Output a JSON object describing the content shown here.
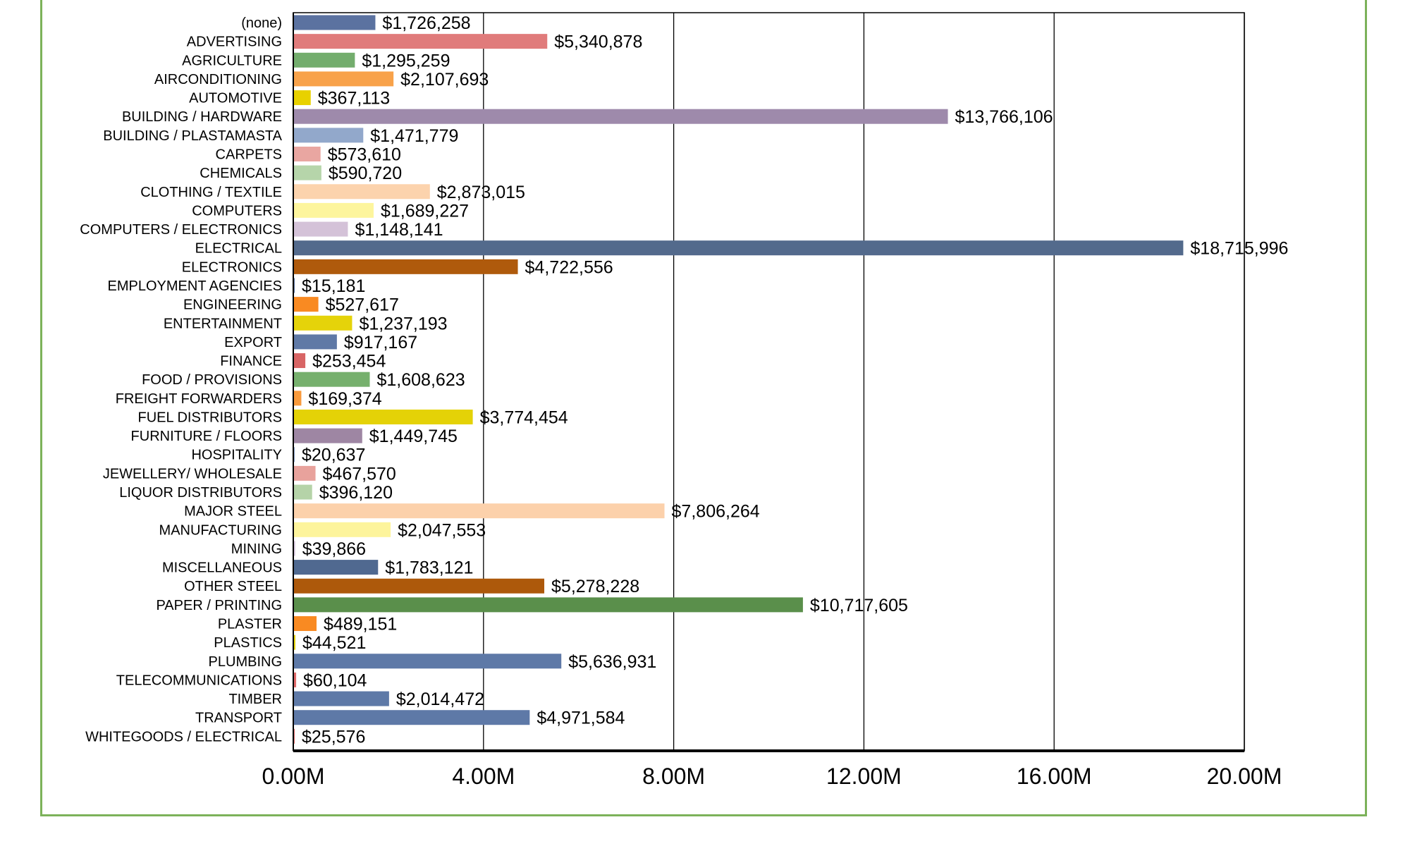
{
  "chart_data": {
    "type": "bar",
    "orientation": "horizontal",
    "title": "",
    "xlabel": "",
    "ylabel": "",
    "xlim": [
      0,
      20000000
    ],
    "grid": true,
    "legend": "none",
    "x_tick_labels": [
      "0.00M",
      "4.00M",
      "8.00M",
      "12.00M",
      "16.00M",
      "20.00M"
    ],
    "categories": [
      "(none)",
      "ADVERTISING",
      "AGRICULTURE",
      "AIRCONDITIONING",
      "AUTOMOTIVE",
      "BUILDING / HARDWARE",
      "BUILDING / PLASTAMASTA",
      "CARPETS",
      "CHEMICALS",
      "CLOTHING / TEXTILE",
      "COMPUTERS",
      "COMPUTERS / ELECTRONICS",
      "ELECTRICAL",
      "ELECTRONICS",
      "EMPLOYMENT AGENCIES",
      "ENGINEERING",
      "ENTERTAINMENT",
      "EXPORT",
      "FINANCE",
      "FOOD / PROVISIONS",
      "FREIGHT FORWARDERS",
      "FUEL DISTRIBUTORS",
      "FURNITURE / FLOORS",
      "HOSPITALITY",
      "JEWELLERY/ WHOLESALE",
      "LIQUOR DISTRIBUTORS",
      "MAJOR STEEL",
      "MANUFACTURING",
      "MINING",
      "MISCELLANEOUS",
      "OTHER STEEL",
      "PAPER / PRINTING",
      "PLASTER",
      "PLASTICS",
      "PLUMBING",
      "TELECOMMUNICATIONS",
      "TIMBER",
      "TRANSPORT",
      "WHITEGOODS / ELECTRICAL"
    ],
    "values": [
      1726258,
      5340878,
      1295259,
      2107693,
      367113,
      13766106,
      1471779,
      573610,
      590720,
      2873015,
      1689227,
      1148141,
      18715996,
      4722556,
      15181,
      527617,
      1237193,
      917167,
      253454,
      1608623,
      169374,
      3774454,
      1449745,
      20637,
      467570,
      396120,
      7806264,
      2047553,
      39866,
      1783121,
      5278228,
      10717605,
      489151,
      44521,
      5636931,
      60104,
      2014472,
      4971584,
      25576
    ],
    "value_labels": [
      "$1,726,258",
      "$5,340,878",
      "$1,295,259",
      "$2,107,693",
      "$367,113",
      "$13,766,106",
      "$1,471,779",
      "$573,610",
      "$590,720",
      "$2,873,015",
      "$1,689,227",
      "$1,148,141",
      "$18,715,996",
      "$4,722,556",
      "$15,181",
      "$527,617",
      "$1,237,193",
      "$917,167",
      "$253,454",
      "$1,608,623",
      "$169,374",
      "$3,774,454",
      "$1,449,745",
      "$20,637",
      "$467,570",
      "$396,120",
      "$7,806,264",
      "$2,047,553",
      "$39,866",
      "$1,783,121",
      "$5,278,228",
      "$10,717,605",
      "$489,151",
      "$44,521",
      "$5,636,931",
      "$60,104",
      "$2,014,472",
      "$4,971,584",
      "$25,576"
    ],
    "colors": [
      "#5b72a0",
      "#e07b7b",
      "#73ad6d",
      "#f8a24a",
      "#e8d100",
      "#9e8aab",
      "#92a8cb",
      "#e9a6a1",
      "#b6d5aa",
      "#fcd3ad",
      "#fdf59d",
      "#d4c2d8",
      "#536a8c",
      "#af5a0c",
      "#5b72a0",
      "#f98a22",
      "#e5d30a",
      "#5f79a6",
      "#d86565",
      "#76b06d",
      "#f99a3c",
      "#e4d207",
      "#9e86a3",
      "#8aa0c8",
      "#e8a29c",
      "#b5d3a8",
      "#fcd1ab",
      "#fdf49c",
      "#d6c4dc",
      "#506990",
      "#ad590b",
      "#5a8f4b",
      "#f98a22",
      "#e4d20a",
      "#5e79a7",
      "#df6a6a",
      "#5e79a7",
      "#5e79a7",
      "#e06a6a"
    ]
  }
}
